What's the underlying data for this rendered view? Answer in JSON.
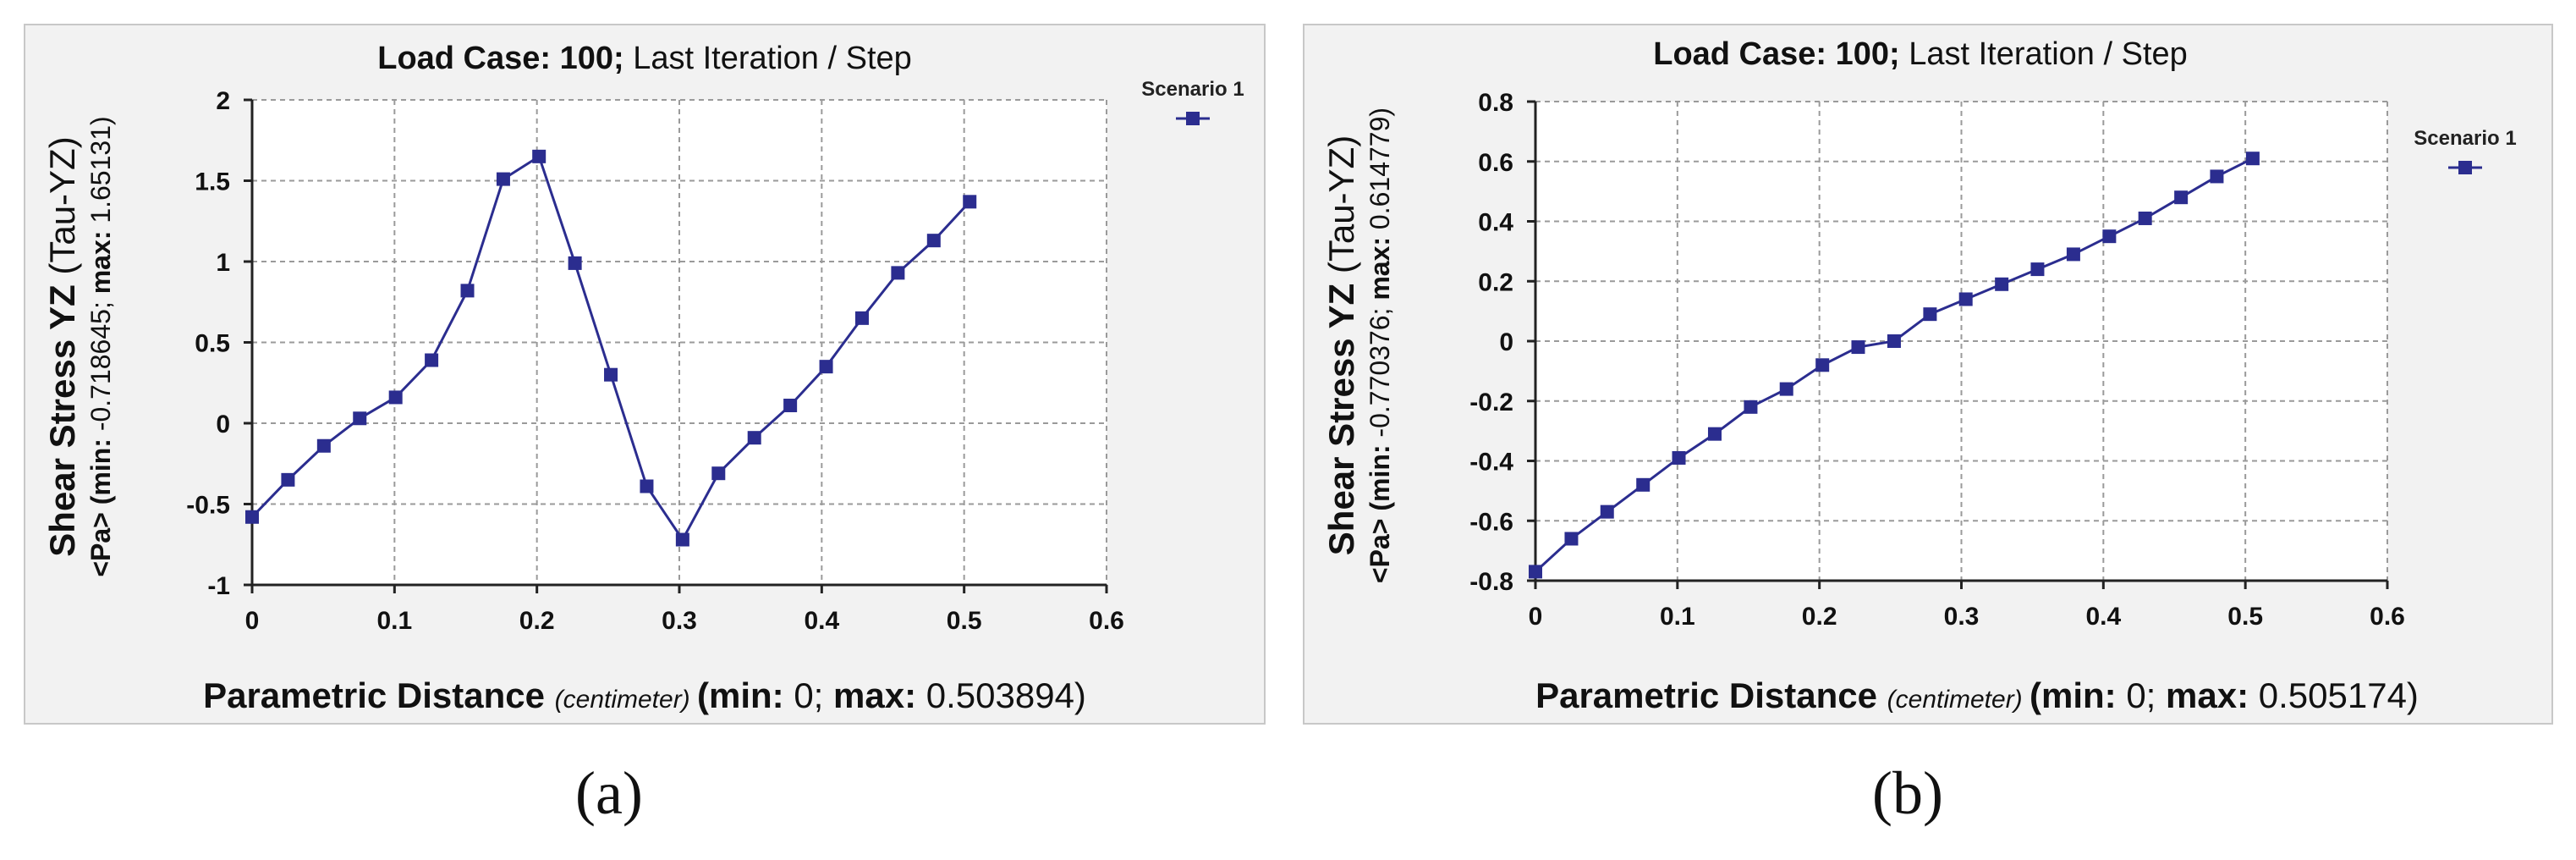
{
  "chart_data": [
    {
      "type": "line",
      "id": "a",
      "title_bold": "Load Case: 100;",
      "title_rest": "Last Iteration / Step",
      "xlabel_main": "Parametric Distance",
      "xlabel_unit": "(centimeter)",
      "xlabel_min_label": "(min:",
      "xlabel_min_value": "0;",
      "xlabel_max_label": "max:",
      "xlabel_max_value": "0.503894)",
      "ylabel_main": "Shear Stress YZ",
      "ylabel_paren": "(Tau-YZ)",
      "ylabel_unit": "<Pa>",
      "ylabel_min_label": "(min:",
      "ylabel_min_value": "-0.718645;",
      "ylabel_max_label": "max:",
      "ylabel_max_value": "1.65131)",
      "xlim": [
        0,
        0.6
      ],
      "ylim": [
        -1,
        2
      ],
      "x_ticks": [
        "0",
        "0.1",
        "0.2",
        "0.3",
        "0.4",
        "0.5",
        "0.6"
      ],
      "y_ticks": [
        "-1",
        "-0.5",
        "0",
        "0.5",
        "1",
        "1.5",
        "2"
      ],
      "grid": true,
      "legend_position": "top-right",
      "series": [
        {
          "name": "Scenario 1",
          "color": "#2b2d8f",
          "x": [
            0,
            0.0252,
            0.0504,
            0.0756,
            0.1008,
            0.126,
            0.1512,
            0.1764,
            0.2015,
            0.2267,
            0.2519,
            0.2771,
            0.3023,
            0.3275,
            0.3527,
            0.3779,
            0.4031,
            0.4283,
            0.4535,
            0.4787,
            0.5039
          ],
          "y": [
            -0.58,
            -0.35,
            -0.14,
            0.03,
            0.16,
            0.39,
            0.82,
            1.51,
            1.65,
            0.99,
            0.3,
            -0.39,
            -0.72,
            -0.31,
            -0.09,
            0.11,
            0.35,
            0.65,
            0.93,
            1.13,
            1.37
          ]
        }
      ]
    },
    {
      "type": "line",
      "id": "b",
      "title_bold": "Load Case: 100;",
      "title_rest": "Last Iteration / Step",
      "xlabel_main": "Parametric Distance",
      "xlabel_unit": "(centimeter)",
      "xlabel_min_label": "(min:",
      "xlabel_min_value": "0;",
      "xlabel_max_label": "max:",
      "xlabel_max_value": "0.505174)",
      "ylabel_main": "Shear Stress YZ",
      "ylabel_paren": "(Tau-YZ)",
      "ylabel_unit": "<Pa>",
      "ylabel_min_label": "(min:",
      "ylabel_min_value": "-0.770376;",
      "ylabel_max_label": "max:",
      "ylabel_max_value": "0.614779)",
      "xlim": [
        0,
        0.6
      ],
      "ylim": [
        -0.8,
        0.8
      ],
      "x_ticks": [
        "0",
        "0.1",
        "0.2",
        "0.3",
        "0.4",
        "0.5",
        "0.6"
      ],
      "y_ticks": [
        "-0.8",
        "-0.6",
        "-0.4",
        "-0.2",
        "0",
        "0.2",
        "0.4",
        "0.6",
        "0.8"
      ],
      "grid": true,
      "legend_position": "top-right",
      "series": [
        {
          "name": "Scenario 1",
          "color": "#2b2d8f",
          "x": [
            0,
            0.0253,
            0.0505,
            0.0758,
            0.101,
            0.1263,
            0.1516,
            0.1768,
            0.2021,
            0.2273,
            0.2526,
            0.2779,
            0.3031,
            0.3284,
            0.3536,
            0.3789,
            0.4042,
            0.4294,
            0.4547,
            0.4799,
            0.5052
          ],
          "y": [
            -0.77,
            -0.66,
            -0.57,
            -0.48,
            -0.39,
            -0.31,
            -0.22,
            -0.16,
            -0.08,
            -0.02,
            0.0,
            0.09,
            0.14,
            0.19,
            0.24,
            0.29,
            0.35,
            0.41,
            0.48,
            0.55,
            0.61
          ]
        }
      ]
    }
  ],
  "captions": {
    "a": "(a)",
    "b": "(b)"
  }
}
